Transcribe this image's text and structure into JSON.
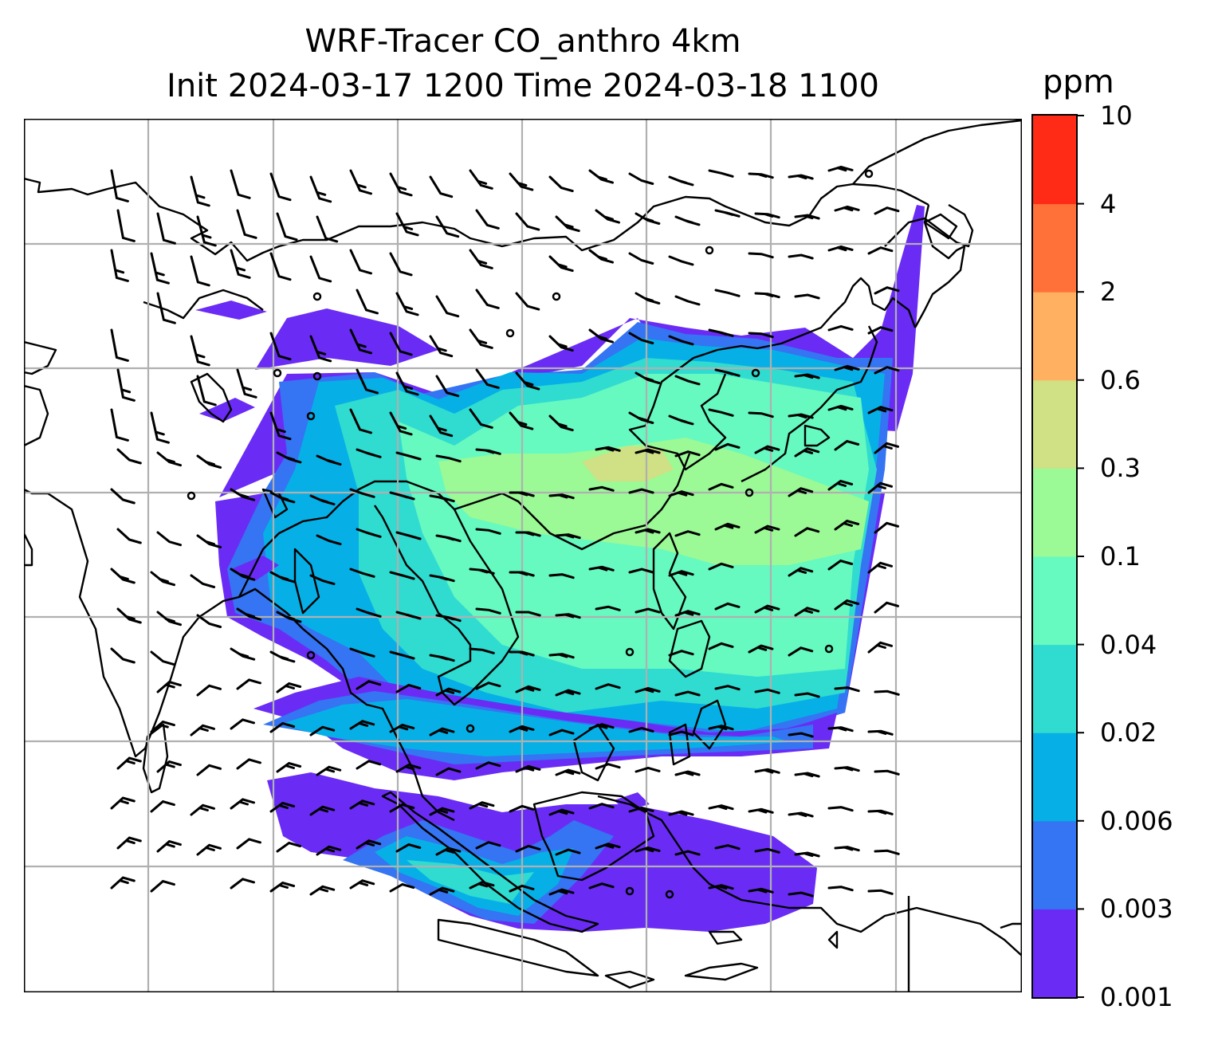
{
  "title": {
    "line1": "WRF-Tracer CO_anthro 4km",
    "line2": "Init 2024-03-17 1200 Time 2024-03-18 1100"
  },
  "colorbar": {
    "unit": "ppm",
    "levels": [
      "0.001",
      "0.003",
      "0.006",
      "0.02",
      "0.04",
      "0.1",
      "0.3",
      "0.6",
      "2",
      "4",
      "10"
    ],
    "colors": [
      "#6a2cf5",
      "#3574f2",
      "#06b0e6",
      "#30dbd0",
      "#66f9c0",
      "#9bf996",
      "#d0e084",
      "#ffb060",
      "#ff7138",
      "#ff2b16"
    ]
  }
}
